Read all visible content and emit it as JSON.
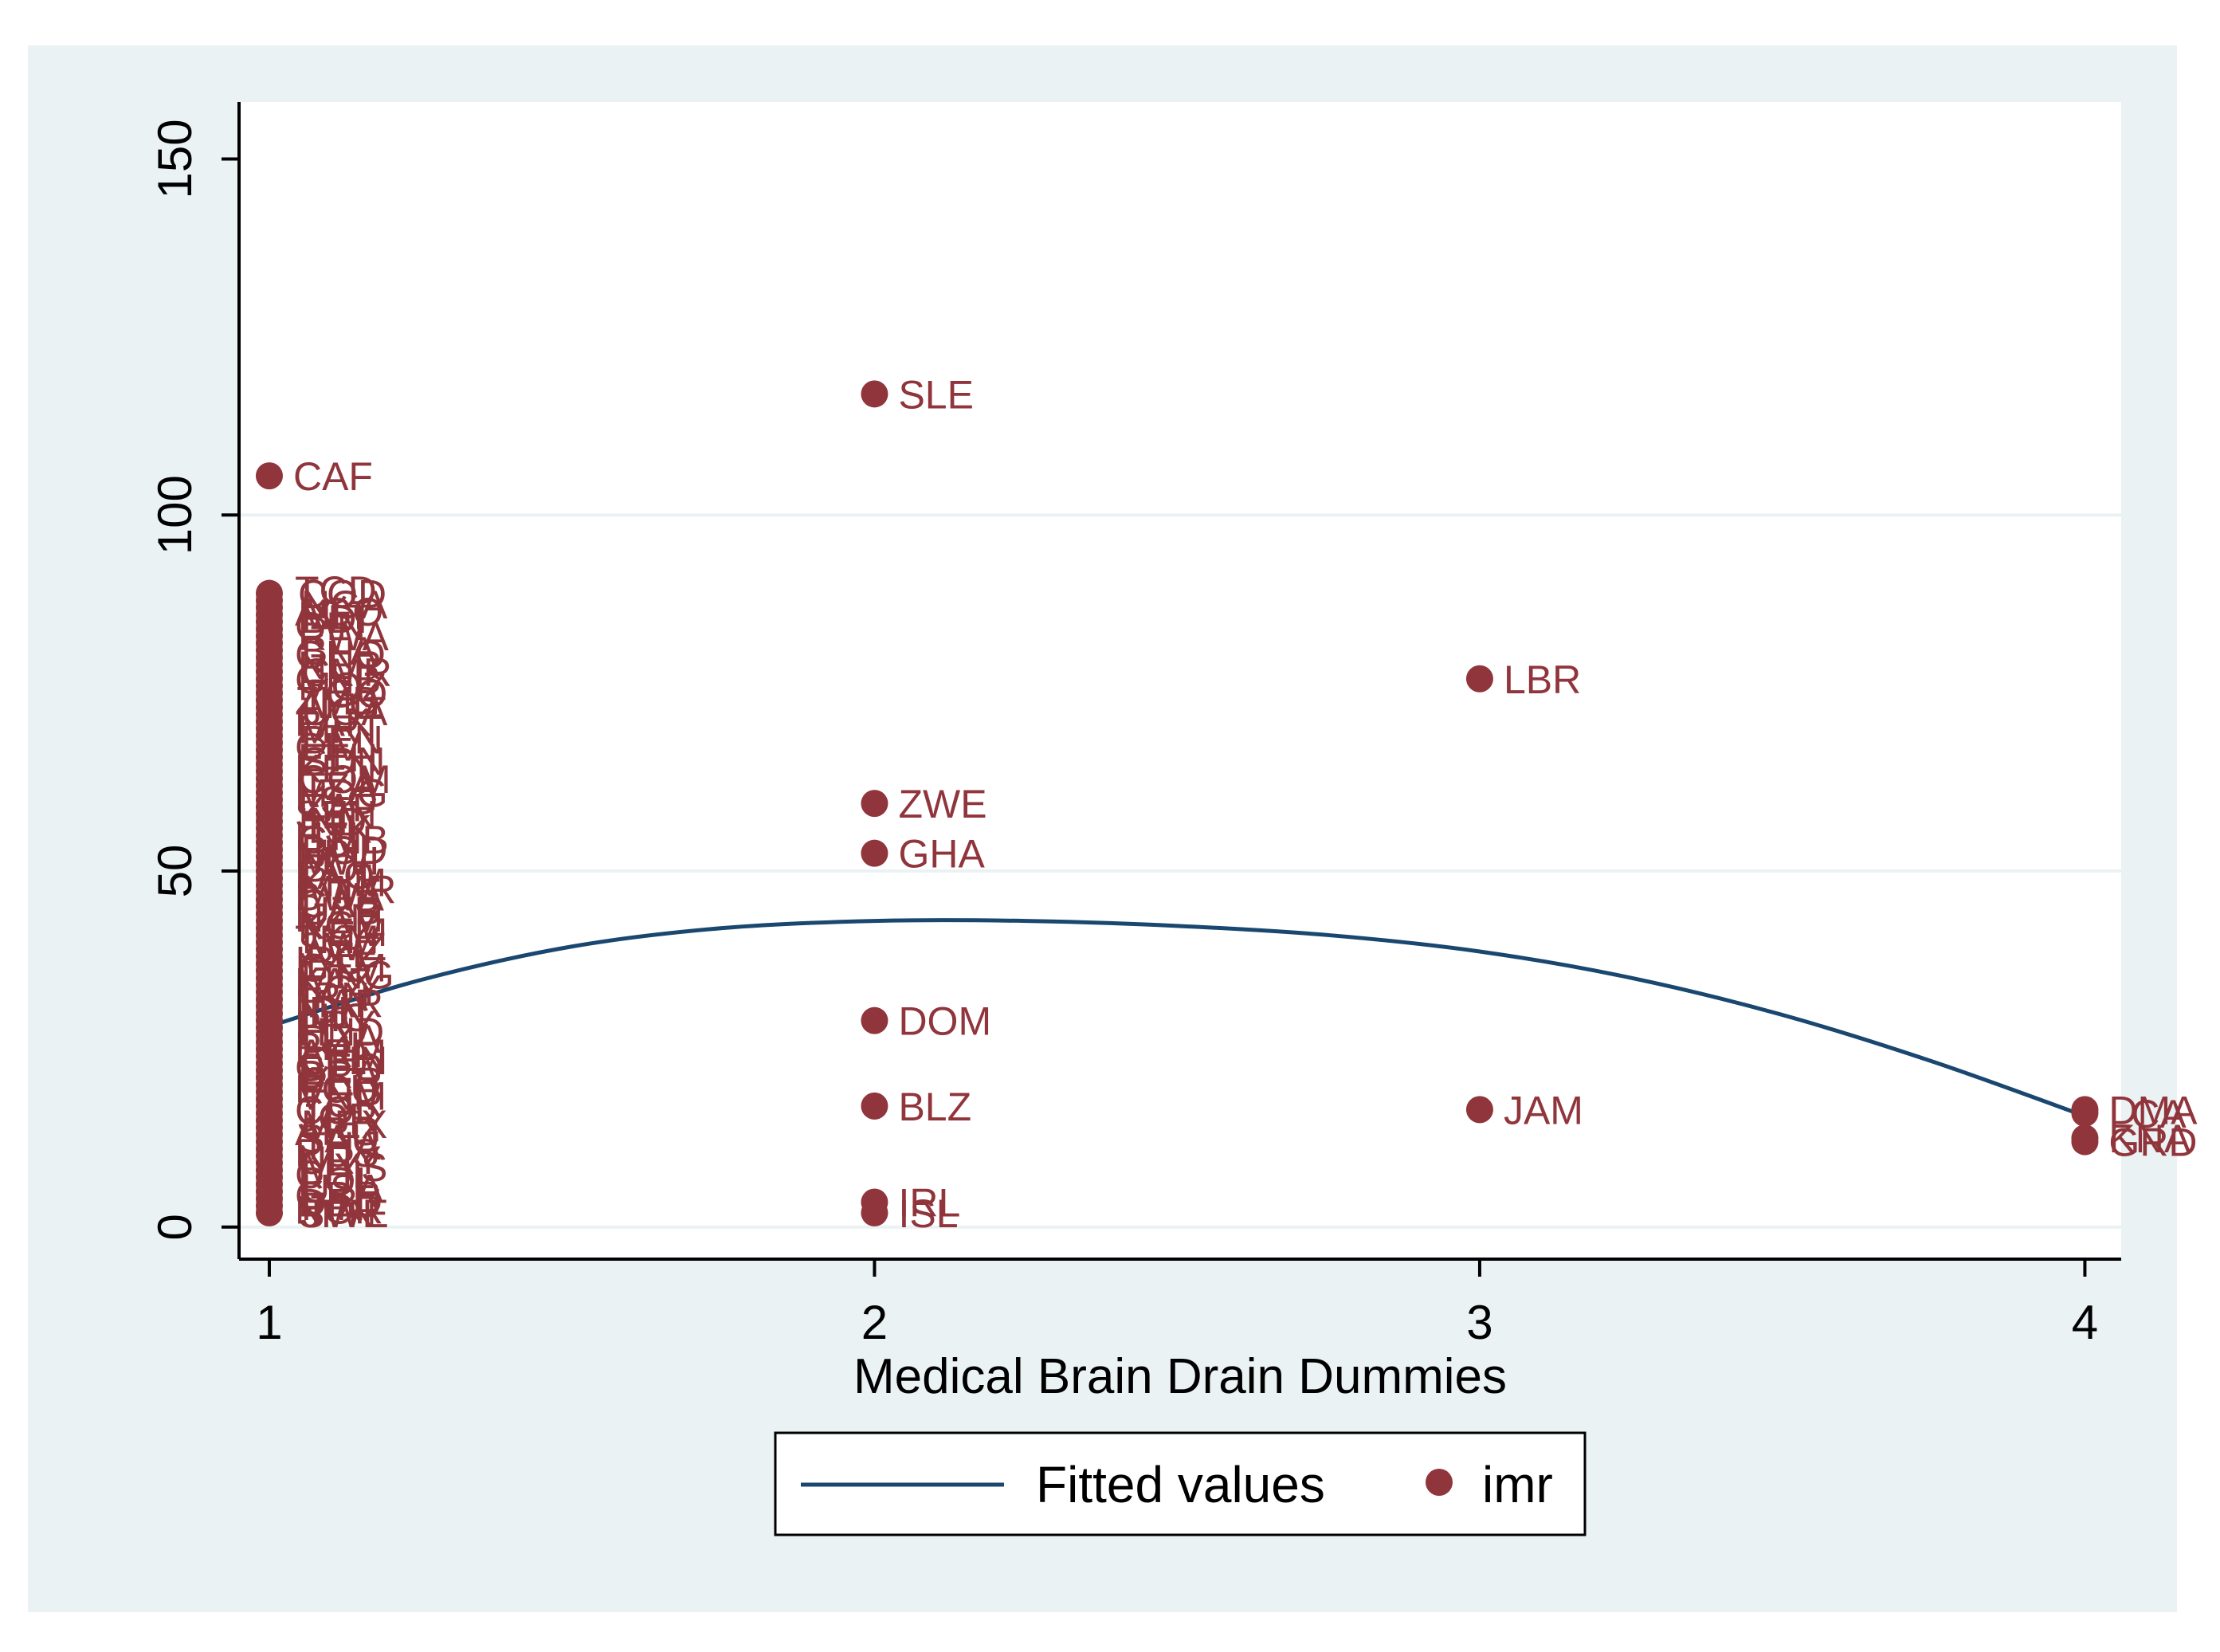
{
  "chart_data": {
    "type": "scatter",
    "title": "",
    "xlabel": "Medical Brain Drain Dummies",
    "ylabel": "",
    "xlim": [
      0.95,
      4.06
    ],
    "ylim": [
      -4.5,
      158
    ],
    "x_ticks": [
      1,
      2,
      3,
      4
    ],
    "y_ticks": [
      0,
      50,
      100,
      150
    ],
    "y_gridlines": [
      0,
      50,
      100
    ],
    "legend": {
      "position": "bottom-center",
      "entries": [
        {
          "label": "Fitted values",
          "kind": "line",
          "color": "#1a476f"
        },
        {
          "label": "imr",
          "kind": "marker",
          "color": "#90353b"
        }
      ]
    },
    "colors": {
      "outer_background": "#eaf2f3",
      "plot_background": "#ffffff",
      "gridline": "#eaf2f3",
      "marker": "#90353b",
      "fit_line": "#1a476f"
    },
    "fitted_values": {
      "name": "Fitted values",
      "x": [
        1,
        1.25,
        1.5,
        1.75,
        2,
        2.25,
        2.5,
        2.75,
        3,
        3.25,
        3.5,
        3.75,
        4
      ],
      "y": [
        28.2,
        34.7,
        39.4,
        42.0,
        43.0,
        43.0,
        42.3,
        41.0,
        38.7,
        35.0,
        29.8,
        23.2,
        15.6
      ]
    },
    "imr_labeled": [
      {
        "x": 1,
        "y": 105.5,
        "label": "CAF"
      },
      {
        "x": 2,
        "y": 117,
        "label": "SLE"
      },
      {
        "x": 2,
        "y": 59.5,
        "label": "ZWE"
      },
      {
        "x": 2,
        "y": 52.5,
        "label": "GHA"
      },
      {
        "x": 2,
        "y": 29,
        "label": "DOM"
      },
      {
        "x": 2,
        "y": 17,
        "label": "BLZ"
      },
      {
        "x": 2,
        "y": 3.5,
        "label": "IRL"
      },
      {
        "x": 2,
        "y": 2,
        "label": "ISL"
      },
      {
        "x": 3,
        "y": 77,
        "label": "LBR"
      },
      {
        "x": 3,
        "y": 16.5,
        "label": "JAM"
      },
      {
        "x": 4,
        "y": 16.5,
        "label": "DMA"
      },
      {
        "x": 4,
        "y": 16,
        "label": "LCA"
      },
      {
        "x": 4,
        "y": 12.5,
        "label": "KNA"
      },
      {
        "x": 4,
        "y": 12,
        "label": "GRD"
      }
    ],
    "imr_cluster_x1": [
      89,
      88,
      87,
      86,
      85,
      84,
      83,
      82,
      81,
      80,
      79,
      78,
      77,
      76,
      75,
      74,
      73,
      72,
      71,
      70,
      69,
      68,
      67,
      66,
      65,
      64,
      63,
      62,
      61,
      60,
      59,
      58,
      57,
      56,
      55,
      54,
      53,
      52,
      51,
      50,
      49,
      48,
      47,
      46,
      45,
      44,
      43,
      42,
      41,
      40,
      39,
      38,
      37,
      36,
      35,
      34,
      33,
      32,
      31,
      30,
      29,
      28,
      27,
      26,
      25,
      24,
      23,
      22,
      21,
      20,
      19,
      18,
      17,
      16,
      15,
      14,
      13,
      12,
      11,
      10,
      9,
      8,
      7,
      6,
      5,
      4,
      3,
      2
    ],
    "cluster_labels_x1": [
      {
        "y": 89.5,
        "label": "TCD"
      },
      {
        "y": 89,
        "label": "COD"
      },
      {
        "y": 87.5,
        "label": "NGA"
      },
      {
        "y": 86.5,
        "label": "AGO"
      },
      {
        "y": 86,
        "label": "MLI"
      },
      {
        "y": 85.5,
        "label": "BDI"
      },
      {
        "y": 84.5,
        "label": "GIN"
      },
      {
        "y": 83,
        "label": "RWA"
      },
      {
        "y": 81,
        "label": "BFA"
      },
      {
        "y": 80.5,
        "label": "GNQ"
      },
      {
        "y": 79,
        "label": "NER"
      },
      {
        "y": 78,
        "label": "CMR"
      },
      {
        "y": 77,
        "label": "GNB"
      },
      {
        "y": 76,
        "label": "MOZ"
      },
      {
        "y": 75,
        "label": "TGO"
      },
      {
        "y": 74,
        "label": "ZMB"
      },
      {
        "y": 73.5,
        "label": "AFG"
      },
      {
        "y": 72.5,
        "label": "UGA"
      },
      {
        "y": 71,
        "label": "PAK"
      },
      {
        "y": 70,
        "label": "MRT"
      },
      {
        "y": 68.5,
        "label": "BEN"
      },
      {
        "y": 67.5,
        "label": "CIV"
      },
      {
        "y": 66,
        "label": "ETH"
      },
      {
        "y": 65.5,
        "label": "SDN"
      },
      {
        "y": 64.5,
        "label": "KEN"
      },
      {
        "y": 63,
        "label": "COM"
      },
      {
        "y": 62,
        "label": "TZA"
      },
      {
        "y": 61,
        "label": "MDG"
      },
      {
        "y": 60,
        "label": "LSO"
      },
      {
        "y": 59,
        "label": "ZAF"
      },
      {
        "y": 58,
        "label": "SEN"
      },
      {
        "y": 57,
        "label": "IND"
      },
      {
        "y": 56,
        "label": "TJK"
      },
      {
        "y": 55,
        "label": "HTI"
      },
      {
        "y": 54.5,
        "label": "GMB"
      },
      {
        "y": 53,
        "label": "BGD"
      },
      {
        "y": 52.5,
        "label": "NPL"
      },
      {
        "y": 51.5,
        "label": "MWI"
      },
      {
        "y": 50.5,
        "label": "BOL"
      },
      {
        "y": 49.5,
        "label": "LAO"
      },
      {
        "y": 48.5,
        "label": "KHM"
      },
      {
        "y": 47.5,
        "label": "MMR"
      },
      {
        "y": 46.5,
        "label": "BWA"
      },
      {
        "y": 45.5,
        "label": "GAB"
      },
      {
        "y": 44.5,
        "label": "UZB"
      },
      {
        "y": 43.5,
        "label": "NAM"
      },
      {
        "y": 42.5,
        "label": "KGZ"
      },
      {
        "y": 41.5,
        "label": "YEM"
      },
      {
        "y": 40.5,
        "label": "TKM"
      },
      {
        "y": 39.5,
        "label": "SWZ"
      },
      {
        "y": 38.5,
        "label": "AZE"
      },
      {
        "y": 37.5,
        "label": "IRQ"
      },
      {
        "y": 36.5,
        "label": "GTM"
      },
      {
        "y": 35.5,
        "label": "MNG"
      },
      {
        "y": 34.5,
        "label": "KAZ"
      },
      {
        "y": 33.5,
        "label": "EGY"
      },
      {
        "y": 32.5,
        "label": "IRN"
      },
      {
        "y": 31.5,
        "label": "MAR"
      },
      {
        "y": 30.5,
        "label": "IDN"
      },
      {
        "y": 29.5,
        "label": "NIC"
      },
      {
        "y": 28.5,
        "label": "PRY"
      },
      {
        "y": 27.5,
        "label": "HND"
      },
      {
        "y": 26.5,
        "label": "DZA"
      },
      {
        "y": 25.5,
        "label": "PHL"
      },
      {
        "y": 24.5,
        "label": "ARM"
      },
      {
        "y": 23.5,
        "label": "CHN"
      },
      {
        "y": 22.5,
        "label": "GEO"
      },
      {
        "y": 21.5,
        "label": "BRA"
      },
      {
        "y": 20.5,
        "label": "PER"
      },
      {
        "y": 19.5,
        "label": "ECU"
      },
      {
        "y": 18.5,
        "label": "VNM"
      },
      {
        "y": 17.5,
        "label": "TUR"
      },
      {
        "y": 16.5,
        "label": "COL"
      },
      {
        "y": 15.5,
        "label": "JOR"
      },
      {
        "y": 14.5,
        "label": "MEX"
      },
      {
        "y": 13.5,
        "label": "ARG"
      },
      {
        "y": 12.5,
        "label": "SAU"
      },
      {
        "y": 11.5,
        "label": "THA"
      },
      {
        "y": 10.5,
        "label": "RUS"
      },
      {
        "y": 9.5,
        "label": "URY"
      },
      {
        "y": 8.5,
        "label": "MYS"
      },
      {
        "y": 7.5,
        "label": "CHL"
      },
      {
        "y": 6.5,
        "label": "POL"
      },
      {
        "y": 5.5,
        "label": "USA"
      },
      {
        "y": 4.5,
        "label": "GBR"
      },
      {
        "y": 3.5,
        "label": "DEU"
      },
      {
        "y": 3,
        "label": "FIN"
      },
      {
        "y": 2.5,
        "label": "NOR"
      },
      {
        "y": 2,
        "label": "SWE"
      },
      {
        "y": 2,
        "label": "JPN"
      }
    ]
  }
}
